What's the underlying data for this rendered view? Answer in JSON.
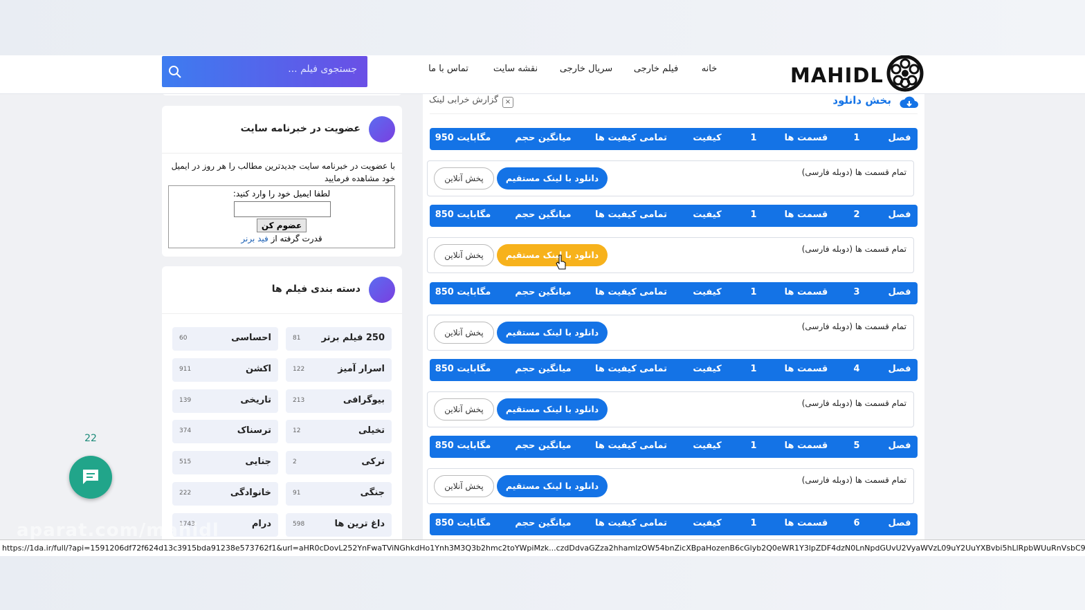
{
  "header": {
    "logo": "MAHIDL",
    "menu": [
      "خانه",
      "فیلم خارجی",
      "سریال خارجی",
      "نقشه سایت",
      "تماس با ما"
    ],
    "search_placeholder": "جستجوی فیلم ..."
  },
  "download": {
    "title": "بخش دانلود",
    "report": "گزارش خرابی لینک",
    "labels": {
      "season": "فصل",
      "episodes": "قسمت ها",
      "quality": "کیفیت",
      "size": "میانگین حجم"
    },
    "seasons": [
      {
        "number": "1",
        "episodes": "1",
        "quality": "تمامی کیفیت ها",
        "size": "950 مگابایت"
      },
      {
        "number": "2",
        "episodes": "1",
        "quality": "تمامی کیفیت ها",
        "size": "850 مگابایت"
      },
      {
        "number": "3",
        "episodes": "1",
        "quality": "تمامی کیفیت ها",
        "size": "850 مگابایت"
      },
      {
        "number": "4",
        "episodes": "1",
        "quality": "تمامی کیفیت ها",
        "size": "850 مگابایت"
      },
      {
        "number": "5",
        "episodes": "1",
        "quality": "تمامی کیفیت ها",
        "size": "850 مگابایت"
      },
      {
        "number": "6",
        "episodes": "1",
        "quality": "تمامی کیفیت ها",
        "size": "850 مگابایت"
      }
    ],
    "row_title": "تمام قسمت ها (دوبله فارسی)",
    "direct_button": "دانلود با لینک مستقیم",
    "online_button": "پخش آنلاین"
  },
  "newsletter": {
    "title": "عضویت در خبرنامه سایت",
    "text": "با عضویت در خبرنامه سایت جدیدترین مطالب را هر روز در ایمیل خود مشاهده فرمایید",
    "prompt": "لطفا ایمیل خود را وارد کنید:",
    "button": "عضوم کن",
    "powered": "قدرت گرفته از",
    "powered_link": "فید برنر"
  },
  "categories": {
    "title": "دسته بندی فیلم ها",
    "items": [
      {
        "name": "250 فیلم برتر",
        "count": "81"
      },
      {
        "name": "احساسی",
        "count": "60"
      },
      {
        "name": "اسرار آمیز",
        "count": "122"
      },
      {
        "name": "اکشن",
        "count": "911"
      },
      {
        "name": "بیوگرافی",
        "count": "213"
      },
      {
        "name": "تاریخی",
        "count": "139"
      },
      {
        "name": "تخیلی",
        "count": "12"
      },
      {
        "name": "ترسناک",
        "count": "374"
      },
      {
        "name": "ترکی",
        "count": "2"
      },
      {
        "name": "جنایی",
        "count": "515"
      },
      {
        "name": "جنگی",
        "count": "91"
      },
      {
        "name": "خانوادگی",
        "count": "222"
      },
      {
        "name": "داغ ترین ها",
        "count": "598"
      },
      {
        "name": "درام",
        "count": "1743"
      }
    ]
  },
  "chat": {
    "count": "22"
  },
  "watermark": "aparat.com/mahidl",
  "status_url": "https://1da.ir/full/?api=1591206df72f624d13c3915bda91238e573762f1&url=aHR0cDovL252YnFwaTViNGhkdHo1Ynh3M3Q3b2hmc2toYWpiMzk...czdDdvaGZza2hhamIzOW54bnZicXBpaHozenB6cGlyb2Q0eWR1Y3lpZDF4dzN0LnNpdGUvU2VyaWVzL09uY2UuYXBvbi5hLlRpbWUuRnVsbC9TMDI=&type=2"
}
